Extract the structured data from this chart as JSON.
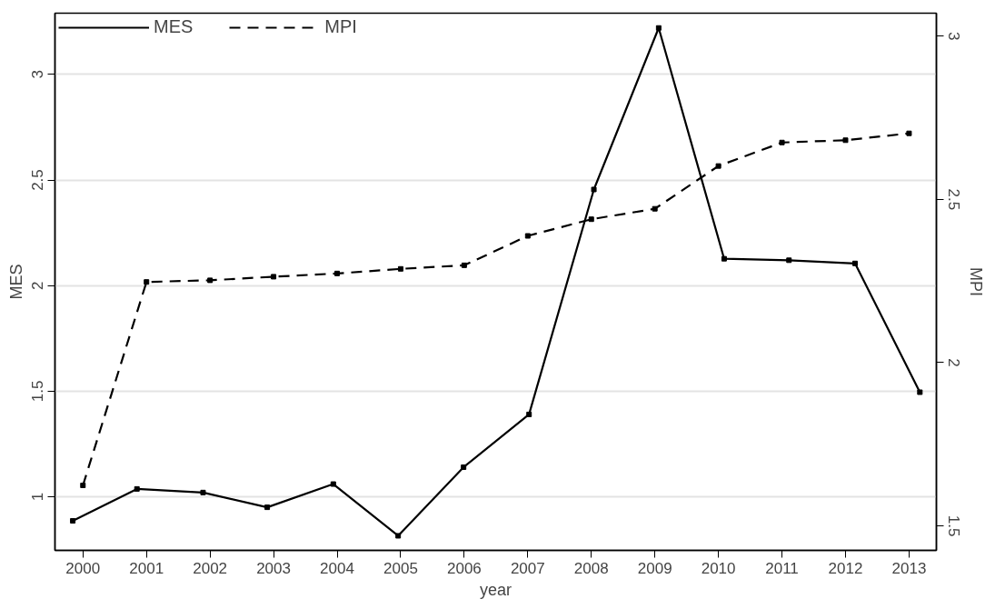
{
  "chart_data": {
    "type": "line",
    "xlabel": "year",
    "ylabel": "MES",
    "y2label": "MPI",
    "xlim": [
      1999.56,
      2013.43
    ],
    "xticks": [
      2000,
      2001,
      2002,
      2003,
      2004,
      2005,
      2006,
      2007,
      2008,
      2009,
      2010,
      2011,
      2012,
      2013
    ],
    "ylim": [
      0.746,
      3.29
    ],
    "yticks": [
      1,
      1.5,
      2,
      2.5,
      3
    ],
    "y2lim": [
      1.425,
      3.07
    ],
    "y2ticks": [
      1.5,
      2,
      2.5,
      3
    ],
    "grid": "y",
    "legend": "top left",
    "marker": "square",
    "series": [
      {
        "name": "MES",
        "color": "#000000",
        "line_style": "solid",
        "x": [
          1999.84,
          2000.85,
          2001.89,
          2002.9,
          2003.94,
          2004.96,
          2005.99,
          2007.02,
          2008.04,
          2009.06,
          2010.09,
          2011.11,
          2012.15,
          2013.17
        ],
        "values": [
          0.886,
          1.037,
          1.02,
          0.95,
          1.06,
          0.815,
          1.14,
          1.39,
          2.455,
          3.22,
          2.127,
          2.12,
          2.105,
          1.495
        ]
      },
      {
        "name": "MPI",
        "color": "#000000",
        "line_style": "dashed",
        "axis": "y2",
        "x": [
          2000,
          2001,
          2002,
          2003,
          2004,
          2005,
          2006,
          2007,
          2008,
          2009,
          2010,
          2011,
          2012,
          2013
        ],
        "values": [
          1.624,
          2.247,
          2.252,
          2.263,
          2.273,
          2.287,
          2.298,
          2.388,
          2.439,
          2.471,
          2.602,
          2.674,
          2.681,
          2.702
        ]
      }
    ]
  }
}
